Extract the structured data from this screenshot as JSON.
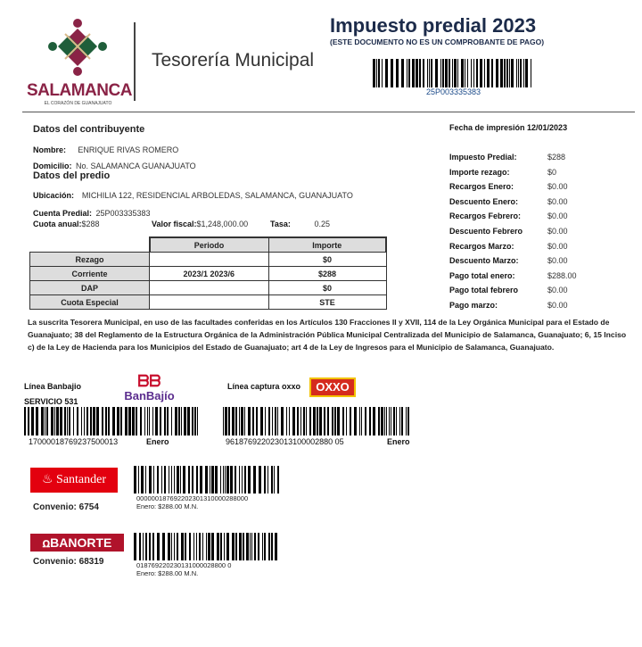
{
  "header": {
    "logo_text": "SALAMANCA",
    "logo_tagline": "EL CORAZÓN DE GUANAJUATO",
    "office": "Tesorería Municipal",
    "title": "Impuesto predial 2023",
    "subtitle": "(ESTE DOCUMENTO NO ES UN COMPROBANTE DE PAGO)",
    "barcode_text": "25P003335383"
  },
  "contribuyente": {
    "heading": "Datos del contribuyente",
    "nombre_label": "Nombre:",
    "nombre": "ENRIQUE RIVAS ROMERO",
    "domicilio_label": "Domicilio:",
    "domicilio": "No. SALAMANCA GUANAJUATO"
  },
  "predio": {
    "heading": "Datos del predio",
    "ubicacion_label": "Ubicación:",
    "ubicacion": "MICHILIA 122, RESIDENCIAL ARBOLEDAS, SALAMANCA, GUANAJUATO",
    "cuenta_label": "Cuenta Predial:",
    "cuenta": "25P003335383",
    "cuota_label": "Cuota anual:",
    "cuota": "$288",
    "valor_label": "Valor fiscal:",
    "valor": "$1,248,000.00",
    "tasa_label": "Tasa:",
    "tasa": "0.25"
  },
  "table": {
    "headers": [
      "Periodo",
      "Importe"
    ],
    "rows": [
      {
        "label": "Rezago",
        "periodo": "",
        "importe": "$0"
      },
      {
        "label": "Corriente",
        "periodo": "2023/1 2023/6",
        "importe": "$288"
      },
      {
        "label": "DAP",
        "periodo": "",
        "importe": "$0"
      },
      {
        "label": "Cuota Especial",
        "periodo": "",
        "importe": "STE"
      }
    ]
  },
  "summary": {
    "fecha": "Fecha de impresión 12/01/2023",
    "items": [
      {
        "label": "Impuesto Predial:",
        "value": "$288"
      },
      {
        "label": "Importe rezago:",
        "value": "$0"
      },
      {
        "label": "Recargos Enero:",
        "value": "$0.00"
      },
      {
        "label": "Descuento Enero:",
        "value": "$0.00"
      },
      {
        "label": "Recargos Febrero:",
        "value": "$0.00"
      },
      {
        "label": "Descuento Febrero",
        "value": "$0.00"
      },
      {
        "label": "Recargos Marzo:",
        "value": "$0.00"
      },
      {
        "label": "Descuento Marzo:",
        "value": "$0.00"
      },
      {
        "label": "Pago total enero:",
        "value": "$288.00"
      },
      {
        "label": "Pago total febrero",
        "value": "$0.00"
      },
      {
        "label": "Pago marzo:",
        "value": "$0.00"
      }
    ]
  },
  "legal": "La suscrita Tesorera Municipal, en uso de las facultades conferidas en los Artículos 130 Fracciones II y XVII, 114 de la Ley Orgánica Municipal para el Estado de Guanajuato; 38 del Reglamento de la Estructura Orgánica de la Administración Pública Municipal Centralizada del Municipio de Salamanca, Guanajuato; 6, 15 Inciso c) de la Ley de Hacienda para los Municipios del Estado de Guanajuato; art 4 de la Ley de Ingresos para el Municipio de Salamanca, Guanajuato.",
  "payments": {
    "banbajio": {
      "label": "Línea Banbajio",
      "servicio": "SERVICIO 531",
      "logo": "BanBajío",
      "code": "17000018769237500013",
      "month": "Enero"
    },
    "oxxo": {
      "label": "Línea captura oxxo",
      "logo": "OXXO",
      "code": "961876922023013100002880 05",
      "month": "Enero"
    },
    "santander": {
      "logo": "Santander",
      "convenio": "Convenio: 6754",
      "code": "000000187692202301310000288000",
      "amount": "Enero: $288.00 M.N."
    },
    "banorte": {
      "logo": "BANORTE",
      "convenio": "Convenio: 68319",
      "code": "018769220230131000028800 0",
      "amount": "Enero: $288.00 M.N."
    }
  },
  "colors": {
    "brand": "#7a1f3d",
    "green": "#1f5e3a",
    "santander": "#e3000f",
    "banorte": "#b0132b",
    "title": "#1c2b4a"
  }
}
